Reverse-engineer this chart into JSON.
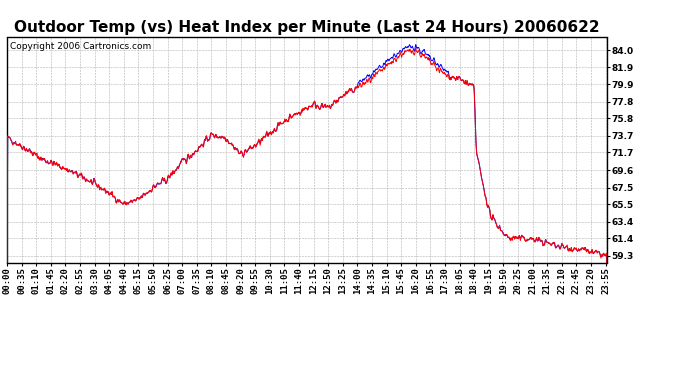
{
  "title": "Outdoor Temp (vs) Heat Index per Minute (Last 24 Hours) 20060622",
  "copyright_text": "Copyright 2006 Cartronics.com",
  "yticks": [
    59.3,
    61.4,
    63.4,
    65.5,
    67.5,
    69.6,
    71.7,
    73.7,
    75.8,
    77.8,
    79.9,
    81.9,
    84.0
  ],
  "ylim": [
    58.5,
    85.5
  ],
  "xtick_labels": [
    "00:00",
    "00:35",
    "01:10",
    "01:45",
    "02:20",
    "02:55",
    "03:30",
    "04:05",
    "04:40",
    "05:15",
    "05:50",
    "06:25",
    "07:00",
    "07:35",
    "08:10",
    "08:45",
    "09:20",
    "09:55",
    "10:30",
    "11:05",
    "11:40",
    "12:15",
    "12:50",
    "13:25",
    "14:00",
    "14:35",
    "15:10",
    "15:45",
    "16:20",
    "16:55",
    "17:30",
    "18:05",
    "18:40",
    "19:15",
    "19:50",
    "20:25",
    "21:00",
    "21:35",
    "22:10",
    "22:45",
    "23:20",
    "23:55"
  ],
  "background_color": "#ffffff",
  "grid_color": "#b0b0b0",
  "line_color_red": "#ff0000",
  "line_color_blue": "#0000ff",
  "title_fontsize": 11,
  "tick_fontsize": 6.5,
  "copyright_fontsize": 6.5
}
